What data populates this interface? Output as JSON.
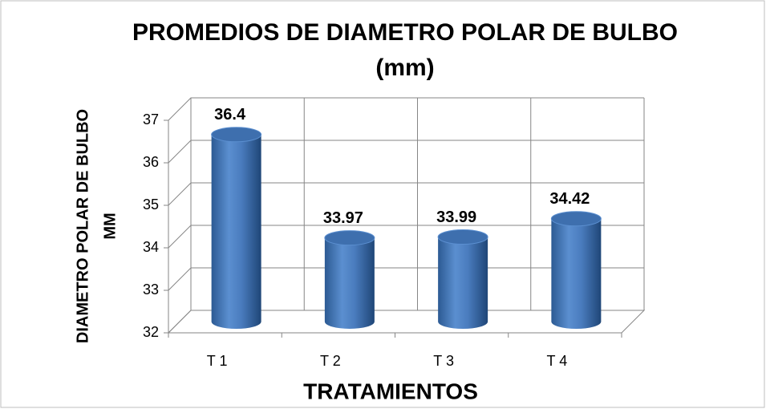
{
  "chart_data": {
    "type": "bar3d",
    "title": [
      "PROMEDIOS DE DIAMETRO POLAR DE BULBO",
      "(mm)"
    ],
    "x_label": "TRATAMIENTOS",
    "y_label": [
      "DIAMETRO POLAR  DE BULBO",
      "MM"
    ],
    "categories": [
      "T 1",
      "T 2",
      "T 3",
      "T 4"
    ],
    "values": [
      36.4,
      33.97,
      33.99,
      34.42
    ],
    "color": "#4f81bd",
    "ylim": [
      32,
      37
    ],
    "yticks": [
      32,
      33,
      34,
      35,
      36,
      37
    ],
    "grid": true
  }
}
